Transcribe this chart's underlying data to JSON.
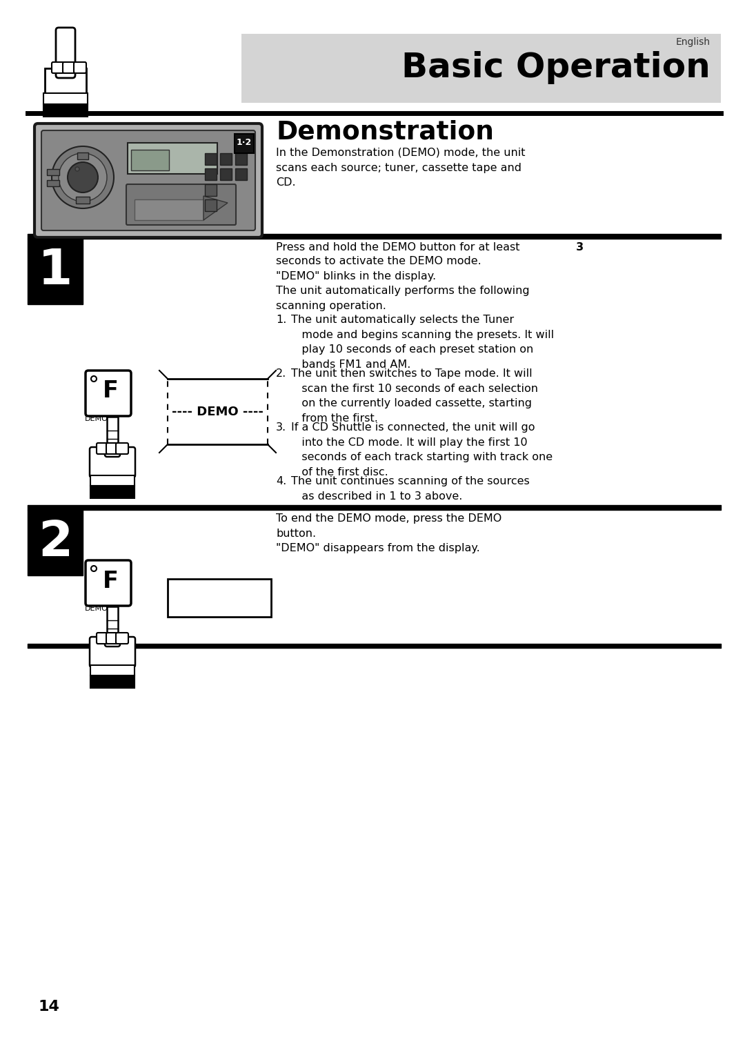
{
  "page_number": "14",
  "language_label": "English",
  "section_title": "Basic Operation",
  "section_title_bg": "#d4d4d4",
  "demo_title": "Demonstration",
  "demo_intro": "In the Demonstration (DEMO) mode, the unit\nscans each source; tuner, cassette tape and\nCD.",
  "step1_line1": "Press and hold the DEMO button for at least ",
  "step1_line1_bold": "3",
  "step1_body": "seconds to activate the DEMO mode.\n\"DEMO\" blinks in the display.\nThe unit automatically performs the following\nscanning operation.",
  "step1_points": [
    "The unit automatically selects the Tuner\n   mode and begins scanning the presets. It will\n   play 10 seconds of each preset station on\n   bands FM1 and AM.",
    "The unit then switches to Tape mode. It will\n   scan the first 10 seconds of each selection\n   on the currently loaded cassette, starting\n   from the first.",
    "If a CD Shuttle is connected, the unit will go\n   into the CD mode. It will play the first 10\n   seconds of each track starting with track one\n   of the first disc.",
    "The unit continues scanning of the sources\n   as described in 1 to 3 above."
  ],
  "step2_text": "To end the DEMO mode, press the DEMO\nbutton.\n\"DEMO\" disappears from the display.",
  "bg_color": "#ffffff"
}
